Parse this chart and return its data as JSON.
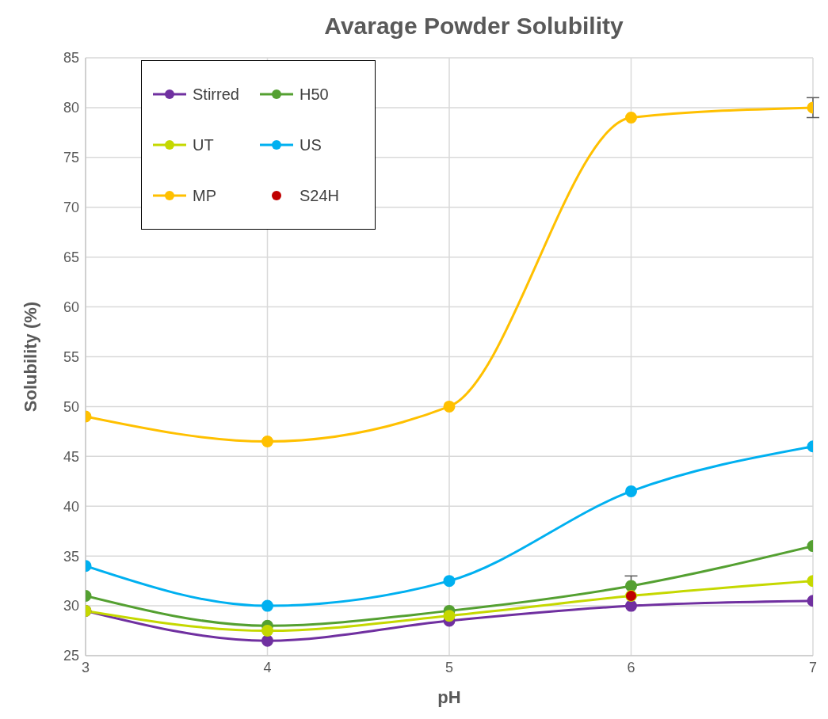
{
  "chart_data": {
    "type": "line",
    "title": "Avarage Powder Solubility",
    "xlabel": "pH",
    "ylabel": "Solubility (%)",
    "x": [
      3,
      4,
      5,
      6,
      7
    ],
    "series": [
      {
        "name": "Stirred",
        "color": "#7030a0",
        "values": [
          29.5,
          26.5,
          28.5,
          30,
          30.5
        ]
      },
      {
        "name": "H50",
        "color": "#54a031",
        "values": [
          31,
          28,
          29.5,
          32,
          36
        ],
        "errors": [
          null,
          null,
          null,
          1,
          null
        ]
      },
      {
        "name": "UT",
        "color": "#c5d800",
        "values": [
          29.5,
          27.5,
          29,
          31,
          32.5
        ]
      },
      {
        "name": "US",
        "color": "#00b0f0",
        "values": [
          34,
          30,
          32.5,
          41.5,
          46
        ]
      },
      {
        "name": "MP",
        "color": "#ffc000",
        "values": [
          49,
          46.5,
          50,
          79,
          80
        ],
        "errors": [
          null,
          null,
          null,
          null,
          1
        ]
      },
      {
        "name": "S24H",
        "type": "scatter",
        "color": "#c00000",
        "x": [
          6
        ],
        "values": [
          31
        ]
      }
    ],
    "xlim": [
      3,
      7
    ],
    "xticks": [
      3,
      4,
      5,
      6,
      7
    ],
    "ylim": [
      25,
      85
    ],
    "yticks": [
      25,
      30,
      35,
      40,
      45,
      50,
      55,
      60,
      65,
      70,
      75,
      80,
      85
    ],
    "grid": true,
    "legend": "top left",
    "marker": "circle",
    "line_style": "solid"
  }
}
